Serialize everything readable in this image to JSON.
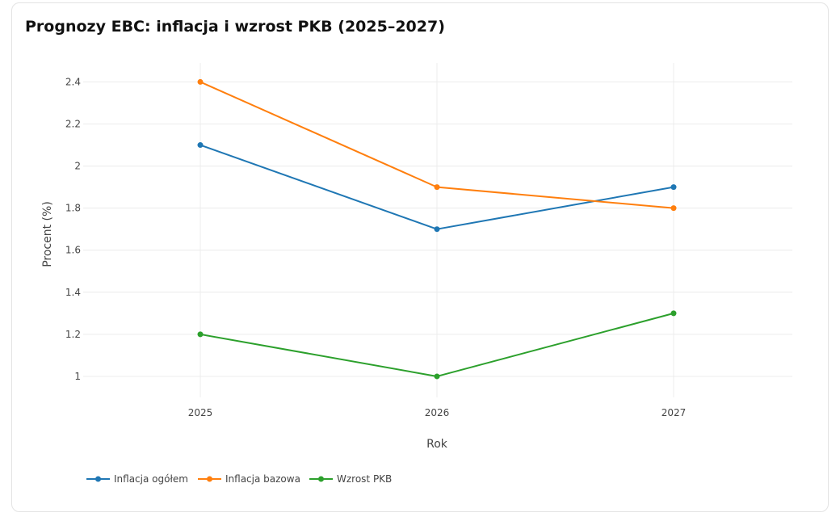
{
  "page": {
    "title": "Prognozy EBC: inflacja i wzrost PKB (2025–2027)"
  },
  "chart_data": {
    "type": "line",
    "title": "Prognozy EBC: inflacja i wzrost PKB (2025–2027)",
    "xlabel": "Rok",
    "ylabel": "Procent (%)",
    "categories": [
      "2025",
      "2026",
      "2027"
    ],
    "ylim": [
      0.9,
      2.49
    ],
    "yticks": [
      1,
      1.2,
      1.4,
      1.6,
      1.8,
      2,
      2.2,
      2.4
    ],
    "ytick_labels": [
      "1",
      "1.2",
      "1.4",
      "1.6",
      "1.8",
      "2",
      "2.2",
      "2.4"
    ],
    "grid": true,
    "legend_position": "bottom-left",
    "series": [
      {
        "name": "Inflacja ogółem",
        "color": "#1f77b4",
        "values": [
          2.1,
          1.7,
          1.9
        ]
      },
      {
        "name": "Inflacja bazowa",
        "color": "#ff7f0e",
        "values": [
          2.4,
          1.9,
          1.8
        ]
      },
      {
        "name": "Wzrost PKB",
        "color": "#2ca02c",
        "values": [
          1.2,
          1.0,
          1.3
        ]
      }
    ]
  }
}
